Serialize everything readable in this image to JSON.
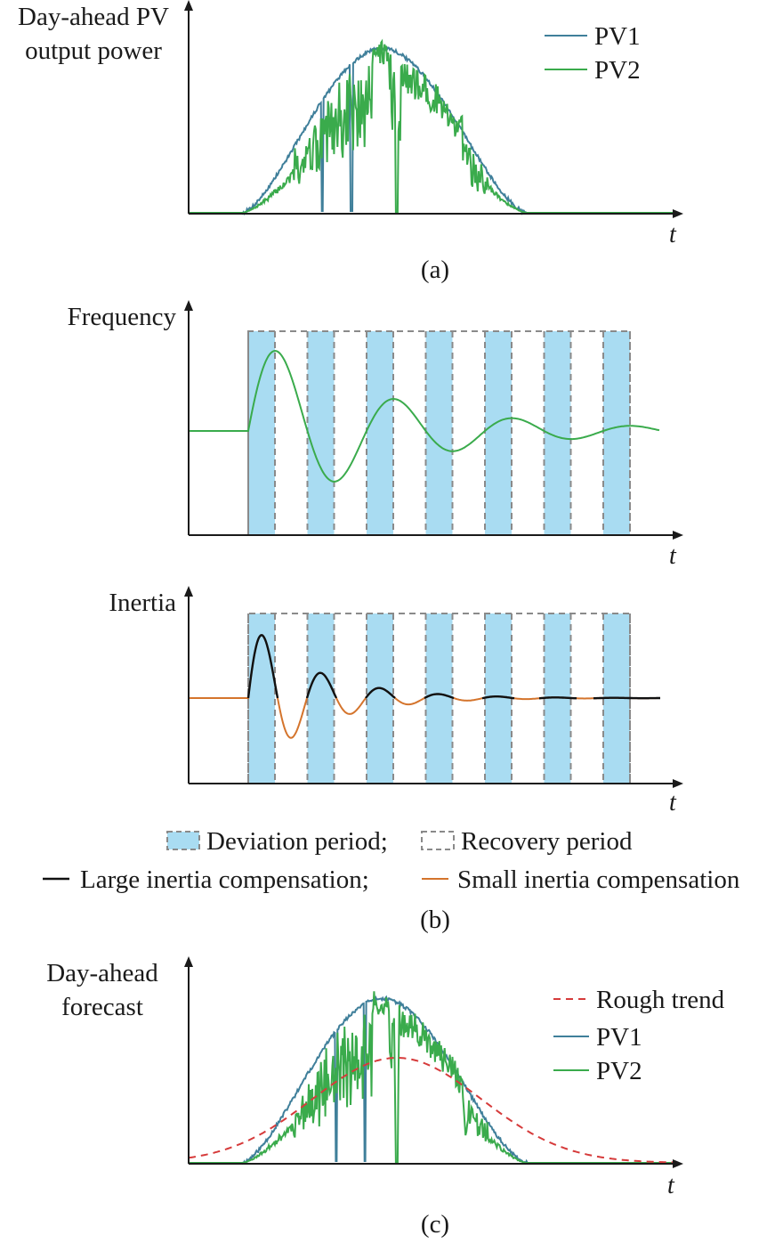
{
  "colors": {
    "pv1": "#3f7f9a",
    "pv2": "#3aab4c",
    "frequency": "#3aab4c",
    "large_inertia": "#111111",
    "small_inertia": "#d4742c",
    "rough_trend": "#d63b3b",
    "deviation_fill": "#a9dcf2",
    "recovery_border": "#8a8a8a"
  },
  "panel_a": {
    "ylabel_line1": "Day-ahead PV",
    "ylabel_line2": "output power",
    "xlabel": "t",
    "caption": "(a)",
    "legend": [
      "PV1",
      "PV2"
    ]
  },
  "panel_b": {
    "top_ylabel": "Frequency",
    "top_xlabel": "t",
    "bottom_ylabel": "Inertia",
    "bottom_xlabel": "t",
    "legend_row1": {
      "deviation": "Deviation period;",
      "recovery": "Recovery period"
    },
    "legend_row2": {
      "large": "Large inertia compensation;",
      "small": "Small inertia compensation"
    },
    "caption": "(b)",
    "deviation_period_count": 7
  },
  "panel_c": {
    "ylabel_line1": "Day-ahead",
    "ylabel_line2": "forecast",
    "xlabel": "t",
    "caption": "(c)",
    "legend": [
      "Rough trend",
      "PV1",
      "PV2"
    ]
  }
}
